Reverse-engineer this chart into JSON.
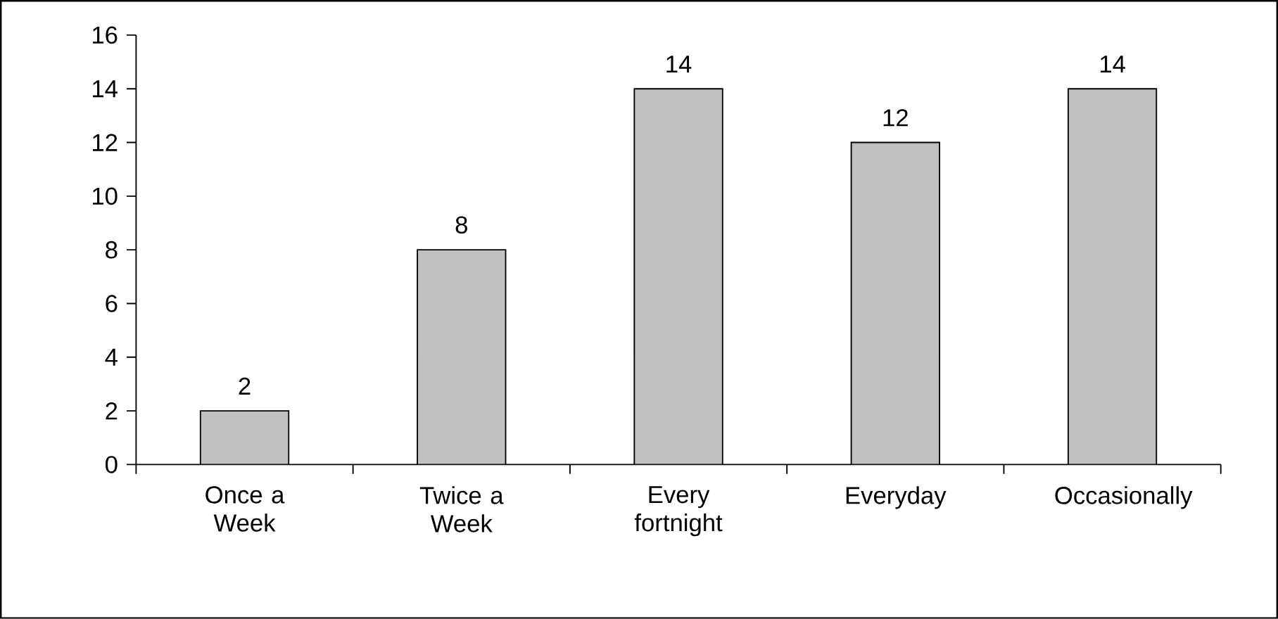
{
  "chart_data": {
    "type": "bar",
    "categories": [
      "Once a Week",
      "Twice a Week",
      "Every fortnight",
      "Everyday",
      "Occasionally"
    ],
    "values": [
      2,
      8,
      14,
      12,
      14
    ],
    "color": "#c0c0c0",
    "ylim": [
      0,
      16
    ],
    "yticks": [
      0,
      2,
      4,
      6,
      8,
      10,
      12,
      14,
      16
    ],
    "data_labels": true
  }
}
